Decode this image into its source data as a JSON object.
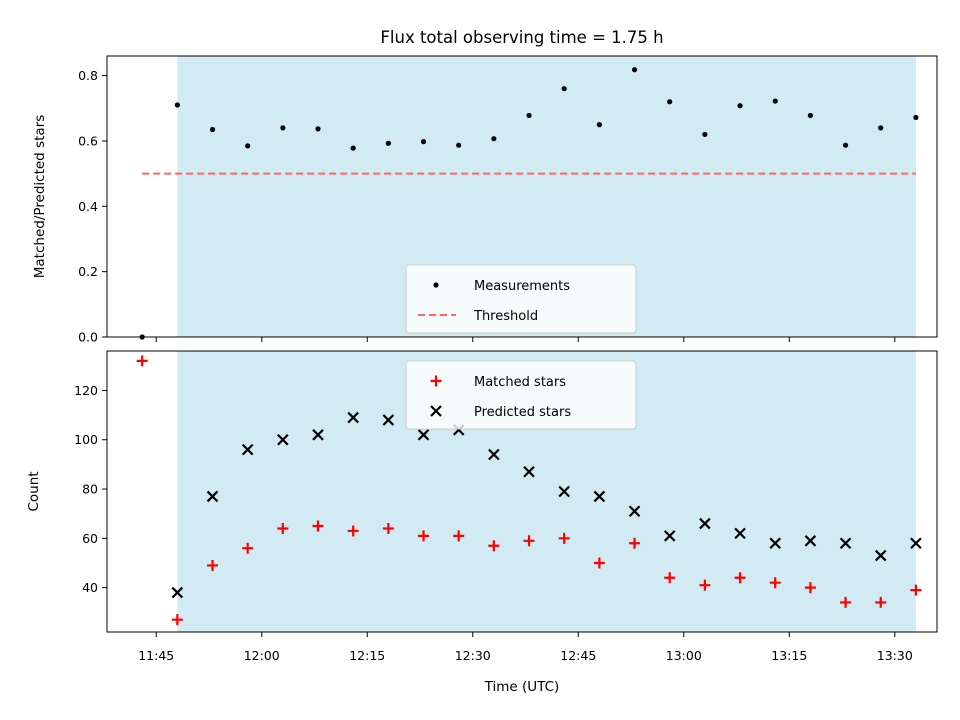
{
  "chart_data": {
    "type": "scatter",
    "title": "Flux total observing time = 1.75 h",
    "xlabel": "Time (UTC)",
    "x_unit": "time (UTC, HH:MM)",
    "xlim": [
      "11:38",
      "13:36"
    ],
    "x_ticks": [
      "11:45",
      "12:00",
      "12:15",
      "12:30",
      "12:45",
      "13:00",
      "13:15",
      "13:30"
    ],
    "shaded_interval": [
      "11:48",
      "13:33"
    ],
    "colors": {
      "shade": "#add8e6",
      "measurements": "#000000",
      "threshold": "#ff6666",
      "matched": "#ff0000",
      "predicted": "#000000"
    },
    "panels": [
      {
        "id": "ratio",
        "ylabel": "Matched/Predicted stars",
        "ylim": [
          0,
          0.86
        ],
        "y_ticks": [
          "0.0",
          "0.2",
          "0.4",
          "0.6",
          "0.8"
        ],
        "x_tick_labels_shown": false,
        "legend_position": "lower center",
        "legend": [
          "Measurements",
          "Threshold"
        ],
        "threshold": {
          "name": "Threshold",
          "y": 0.5,
          "x_range": [
            "11:43",
            "13:33"
          ],
          "style": "dashed"
        },
        "series": [
          {
            "name": "Measurements",
            "marker": "dot",
            "x": [
              "11:43",
              "11:48",
              "11:53",
              "11:58",
              "12:03",
              "12:08",
              "12:13",
              "12:18",
              "12:23",
              "12:28",
              "12:33",
              "12:38",
              "12:43",
              "12:48",
              "12:53",
              "12:58",
              "13:03",
              "13:08",
              "13:13",
              "13:18",
              "13:23",
              "13:28",
              "13:33"
            ],
            "y": [
              0.0,
              0.71,
              0.635,
              0.585,
              0.64,
              0.637,
              0.578,
              0.593,
              0.598,
              0.587,
              0.607,
              0.678,
              0.76,
              0.65,
              0.818,
              0.72,
              0.62,
              0.708,
              0.722,
              0.678,
              0.587,
              0.64,
              0.672
            ]
          }
        ]
      },
      {
        "id": "counts",
        "ylabel": "Count",
        "ylim": [
          22,
          136
        ],
        "y_ticks": [
          "40",
          "60",
          "80",
          "100",
          "120"
        ],
        "x_tick_labels_shown": true,
        "legend_position": "upper center",
        "legend": [
          "Matched stars",
          "Predicted stars"
        ],
        "series": [
          {
            "name": "Matched stars",
            "marker": "plus",
            "x": [
              "11:43",
              "11:48",
              "11:53",
              "11:58",
              "12:03",
              "12:08",
              "12:13",
              "12:18",
              "12:23",
              "12:28",
              "12:33",
              "12:38",
              "12:43",
              "12:48",
              "12:53",
              "12:58",
              "13:03",
              "13:08",
              "13:13",
              "13:18",
              "13:23",
              "13:28",
              "13:33"
            ],
            "y": [
              132,
              27,
              49,
              56,
              64,
              65,
              63,
              64,
              61,
              61,
              57,
              59,
              60,
              50,
              58,
              44,
              41,
              44,
              42,
              40,
              34,
              34,
              39
            ]
          },
          {
            "name": "Predicted stars",
            "marker": "x",
            "x": [
              "11:48",
              "11:53",
              "11:58",
              "12:03",
              "12:08",
              "12:13",
              "12:18",
              "12:23",
              "12:28",
              "12:33",
              "12:38",
              "12:43",
              "12:48",
              "12:53",
              "12:58",
              "13:03",
              "13:08",
              "13:13",
              "13:18",
              "13:23",
              "13:28",
              "13:33"
            ],
            "y": [
              38,
              77,
              96,
              100,
              102,
              109,
              108,
              102,
              104,
              94,
              87,
              79,
              77,
              71,
              61,
              66,
              62,
              58,
              59,
              58,
              53,
              58
            ]
          }
        ]
      }
    ]
  }
}
